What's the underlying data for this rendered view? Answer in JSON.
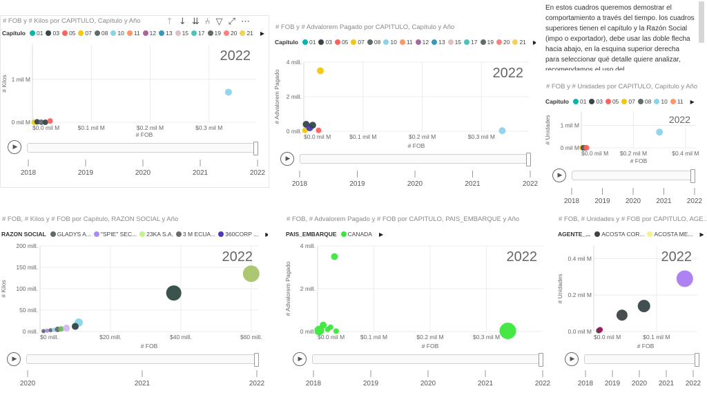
{
  "text_box": {
    "body": "En estos cuadros queremos demostrar el comportamiento a través del tiempo. los cuadros superiores tienen el capítulo y la Razón Social (impo o exportador), debe usar las doble flecha hacia abajo, en la esquina superior derecha para seleccionar qué detalle quiere analizar, recomendamos el uso del"
  },
  "toolbar": {
    "icons": [
      "drill-up-icon",
      "drill-down-icon",
      "expand-all-down-icon",
      "expand-next-level-icon",
      "filter-icon",
      "focus-mode-icon",
      "more-options-icon"
    ]
  },
  "visuals": [
    {
      "title": "# FOB y # Kilos por CAPITULO, Capítulo y Año",
      "legend_title": "Capítulo",
      "legend": [
        {
          "label": "01",
          "color": "#01B8AA"
        },
        {
          "label": "03",
          "color": "#374649"
        },
        {
          "label": "05",
          "color": "#FD625E"
        },
        {
          "label": "07",
          "color": "#F2C80F"
        },
        {
          "label": "08",
          "color": "#5F6B6D"
        },
        {
          "label": "10",
          "color": "#8AD4EB"
        },
        {
          "label": "11",
          "color": "#FE9666"
        },
        {
          "label": "12",
          "color": "#A66999"
        },
        {
          "label": "13",
          "color": "#3599B8"
        },
        {
          "label": "15",
          "color": "#DFBFBF"
        },
        {
          "label": "17",
          "color": "#4AC5BB"
        },
        {
          "label": "19",
          "color": "#5F6B6D"
        },
        {
          "label": "20",
          "color": "#FB8281"
        },
        {
          "label": "21",
          "color": "#F4D25A"
        }
      ],
      "year_watermark": "2022",
      "x_label": "# FOB",
      "y_label": "# Kilos",
      "x_ticks": [
        "$0.0 mil M",
        "$0.1 mil M",
        "$0.2 mil M",
        "$0.3 mil M"
      ],
      "y_ticks": [
        "0 mil M",
        "1 mil M"
      ],
      "play_axis": [
        "2018",
        "2019",
        "2020",
        "2021",
        "2022"
      ]
    },
    {
      "title": "# FOB y # Advalorem Pagado por CAPITULO, Capítulo y Año",
      "legend_title": "Capítulo",
      "legend": [
        {
          "label": "01",
          "color": "#01B8AA"
        },
        {
          "label": "03",
          "color": "#374649"
        },
        {
          "label": "05",
          "color": "#FD625E"
        },
        {
          "label": "07",
          "color": "#F2C80F"
        },
        {
          "label": "08",
          "color": "#5F6B6D"
        },
        {
          "label": "10",
          "color": "#8AD4EB"
        },
        {
          "label": "11",
          "color": "#FE9666"
        },
        {
          "label": "12",
          "color": "#A66999"
        },
        {
          "label": "13",
          "color": "#3599B8"
        },
        {
          "label": "15",
          "color": "#DFBFBF"
        },
        {
          "label": "17",
          "color": "#4AC5BB"
        },
        {
          "label": "19",
          "color": "#5F6B6D"
        },
        {
          "label": "20",
          "color": "#FB8281"
        },
        {
          "label": "21",
          "color": "#F4D25A"
        }
      ],
      "year_watermark": "2022",
      "x_label": "# FOB",
      "y_label": "# Advalorem Pagado",
      "x_ticks": [
        "$0.0 mil M",
        "$0.1 mil M",
        "$0.2 mil M",
        "$0.3 mil M"
      ],
      "y_ticks": [
        "0 mill.",
        "2 mill.",
        "4 mill."
      ],
      "play_axis": [
        "2018",
        "2019",
        "2020",
        "2021",
        "2022"
      ]
    },
    {
      "title": "# FOB y # Unidades por CAPITULO, Capítulo y Año",
      "legend_title": "Capítulo",
      "legend": [
        {
          "label": "01",
          "color": "#01B8AA"
        },
        {
          "label": "03",
          "color": "#374649"
        },
        {
          "label": "05",
          "color": "#FD625E"
        },
        {
          "label": "07",
          "color": "#F2C80F"
        },
        {
          "label": "08",
          "color": "#5F6B6D"
        },
        {
          "label": "10",
          "color": "#8AD4EB"
        },
        {
          "label": "11",
          "color": "#FE9666"
        }
      ],
      "year_watermark": "2022",
      "x_label": "# FOB",
      "y_label": "# Unidades",
      "x_ticks": [
        "$0.0 mil M",
        "$0.2 mil M",
        "$0.4 mil M"
      ],
      "y_ticks": [
        "0 mil M",
        "1 mil M"
      ],
      "play_axis": [
        "2018",
        "2019",
        "2020",
        "2021",
        "2022"
      ]
    },
    {
      "title": "# FOB, # Kilos y # FOB por Capítulo, RAZON SOCIAL y Año",
      "legend_title": "RAZON SOCIAL",
      "legend": [
        {
          "label": "GLADYS A...",
          "color": "#5F6B6D"
        },
        {
          "label": "\"SPIE\" SEC...",
          "color": "#A98CF0"
        },
        {
          "label": "23KA S.A.",
          "color": "#C5F08A"
        },
        {
          "label": "3 M ECUA...",
          "color": "#6B6B6B"
        },
        {
          "label": "360CORP ...",
          "color": "#4B3BB5"
        }
      ],
      "year_watermark": "2022",
      "x_label": "# FOB",
      "y_label": "# Kilos",
      "x_ticks": [
        "$0 mill.",
        "$20 mill.",
        "$40 mill.",
        "$60 mill."
      ],
      "y_ticks": [
        "0 mill.",
        "50 mill.",
        "100 mill.",
        "150 mill.",
        "200 mill."
      ],
      "play_axis": [
        "2020",
        "2021",
        "2022"
      ]
    },
    {
      "title": "# FOB, # Advalorem Pagado y # FOB por CAPITULO, PAIS_EMBARQUE y Año",
      "legend_title": "PAIS_EMBARQUE",
      "legend": [
        {
          "label": "CANADA",
          "color": "#3CE63C"
        }
      ],
      "year_watermark": "2022",
      "x_label": "# FOB",
      "y_label": "# Advalorem Pagado",
      "x_ticks": [
        "$0.0 mil M",
        "$0.1 mil M",
        "$0.2 mil M",
        "$0.3 mil M"
      ],
      "y_ticks": [
        "0 mill.",
        "2 mill.",
        "4 mill."
      ],
      "play_axis": [
        "2018",
        "2019",
        "2020",
        "2021",
        "2022"
      ]
    },
    {
      "title": "# FOB, # Unidades y # FOB por CAPITULO, AGE...",
      "legend_title": "AGENTE_...",
      "legend": [
        {
          "label": "ACOSTA COR...",
          "color": "#3E4347"
        },
        {
          "label": "ACOSTA ME...",
          "color": "#F4F08A"
        }
      ],
      "year_watermark": "2022",
      "x_label": "# FOB",
      "y_label": "# Unidades",
      "x_ticks": [
        "$0.0 mil M",
        "$0.1 mil M"
      ],
      "y_ticks": [
        "0.0 mil M",
        "0.2 mil M",
        "0.4 mil M"
      ],
      "play_axis": [
        "2018",
        "2019",
        "2020",
        "2021",
        "2022"
      ]
    }
  ],
  "chart_data": [
    {
      "type": "scatter",
      "title": "# FOB y # Kilos por CAPITULO, Capítulo y Año",
      "xlabel": "# FOB",
      "ylabel": "# Kilos",
      "x_unit": "mil M",
      "y_unit": "mil M",
      "xlim": [
        0,
        0.38
      ],
      "ylim": [
        0,
        1.8
      ],
      "x_ticks": [
        0,
        0.1,
        0.2,
        0.3
      ],
      "y_ticks": [
        0,
        1
      ],
      "points": [
        {
          "x": 0.003,
          "y": 0.0,
          "color": "#F2C80F",
          "r": 4
        },
        {
          "x": 0.008,
          "y": 0.01,
          "color": "#374649",
          "r": 4
        },
        {
          "x": 0.015,
          "y": 0.0,
          "color": "#5F6B6D",
          "r": 4
        },
        {
          "x": 0.022,
          "y": 0.0,
          "color": "#374649",
          "r": 4
        },
        {
          "x": 0.03,
          "y": 0.03,
          "color": "#FD625E",
          "r": 4
        },
        {
          "x": 0.333,
          "y": 0.7,
          "color": "#8AD4EB",
          "r": 5
        }
      ]
    },
    {
      "type": "scatter",
      "title": "# FOB y # Advalorem Pagado por CAPITULO, Capítulo y Año",
      "xlabel": "# FOB",
      "ylabel": "# Advalorem Pagado",
      "x_unit": "mil M",
      "y_unit": "mill.",
      "xlim": [
        0,
        0.38
      ],
      "ylim": [
        0,
        4
      ],
      "x_ticks": [
        0,
        0.1,
        0.2,
        0.3
      ],
      "y_ticks": [
        0,
        2,
        4
      ],
      "points": [
        {
          "x": 0.002,
          "y": 0.05,
          "color": "#F2C80F",
          "r": 4
        },
        {
          "x": 0.004,
          "y": 0.4,
          "color": "#374649",
          "r": 5
        },
        {
          "x": 0.01,
          "y": 0.2,
          "color": "#4B3BB5",
          "r": 5
        },
        {
          "x": 0.015,
          "y": 0.35,
          "color": "#374649",
          "r": 5
        },
        {
          "x": 0.025,
          "y": 0.05,
          "color": "#FD625E",
          "r": 4
        },
        {
          "x": 0.028,
          "y": 3.5,
          "color": "#F2C80F",
          "r": 5
        },
        {
          "x": 0.335,
          "y": 0.03,
          "color": "#8AD4EB",
          "r": 5
        }
      ]
    },
    {
      "type": "scatter",
      "title": "# FOB y # Unidades por CAPITULO, Capítulo y Año",
      "xlabel": "# FOB",
      "ylabel": "# Unidades",
      "x_unit": "mil M",
      "y_unit": "mil M",
      "xlim": [
        0,
        0.44
      ],
      "ylim": [
        0,
        1.6
      ],
      "x_ticks": [
        0,
        0.2,
        0.4
      ],
      "y_ticks": [
        0,
        1
      ],
      "points": [
        {
          "x": 0.003,
          "y": 0.0,
          "color": "#F2C80F",
          "r": 4
        },
        {
          "x": 0.008,
          "y": 0.0,
          "color": "#374649",
          "r": 4
        },
        {
          "x": 0.014,
          "y": 0.0,
          "color": "#5F6B6D",
          "r": 4
        },
        {
          "x": 0.02,
          "y": 0.0,
          "color": "#FD625E",
          "r": 4
        },
        {
          "x": 0.3,
          "y": 0.7,
          "color": "#8AD4EB",
          "r": 5
        }
      ]
    },
    {
      "type": "scatter",
      "title": "# FOB, # Kilos y # FOB por Capítulo, RAZON SOCIAL y Año",
      "xlabel": "# FOB",
      "ylabel": "# Kilos",
      "x_unit": "mill.",
      "y_unit": "mill.",
      "xlim": [
        0,
        62
      ],
      "ylim": [
        0,
        200
      ],
      "x_ticks": [
        0,
        20,
        40,
        60
      ],
      "y_ticks": [
        0,
        50,
        100,
        150,
        200
      ],
      "points": [
        {
          "x": 1,
          "y": 1,
          "color": "#5F6B6D",
          "r": 3
        },
        {
          "x": 2,
          "y": 2,
          "color": "#A98CF0",
          "r": 3
        },
        {
          "x": 3,
          "y": 3,
          "color": "#5F6B6D",
          "r": 3
        },
        {
          "x": 4,
          "y": 4,
          "color": "#8AD4EB",
          "r": 3
        },
        {
          "x": 5,
          "y": 5,
          "color": "#5F6B6D",
          "r": 4
        },
        {
          "x": 6,
          "y": 6,
          "color": "#6BBF59",
          "r": 4
        },
        {
          "x": 7.5,
          "y": 8,
          "color": "#D5B8F0",
          "r": 5
        },
        {
          "x": 10,
          "y": 12,
          "color": "#8AD4EB",
          "r": 5
        },
        {
          "x": 11,
          "y": 21,
          "color": "#8AD4EB",
          "r": 6
        },
        {
          "x": 10,
          "y": 12,
          "color": "#374649",
          "r": 5
        },
        {
          "x": 38,
          "y": 90,
          "color": "#2F4A42",
          "r": 11
        },
        {
          "x": 60,
          "y": 135,
          "color": "#A7C46A",
          "r": 12
        }
      ]
    },
    {
      "type": "scatter",
      "title": "# FOB, # Advalorem Pagado y # FOB por CAPITULO, PAIS_EMBARQUE y Año",
      "xlabel": "# FOB",
      "ylabel": "# Advalorem Pagado",
      "x_unit": "mil M",
      "y_unit": "mill.",
      "xlim": [
        0,
        0.4
      ],
      "ylim": [
        0,
        4
      ],
      "x_ticks": [
        0,
        0.1,
        0.2,
        0.3
      ],
      "y_ticks": [
        0,
        2,
        4
      ],
      "points": [
        {
          "x": 0.003,
          "y": 0.05,
          "color": "#3CE63C",
          "r": 7
        },
        {
          "x": 0.01,
          "y": 0.3,
          "color": "#3CE63C",
          "r": 5
        },
        {
          "x": 0.018,
          "y": 0.1,
          "color": "#3CE63C",
          "r": 4
        },
        {
          "x": 0.023,
          "y": 0.2,
          "color": "#3CE63C",
          "r": 4
        },
        {
          "x": 0.033,
          "y": 0.02,
          "color": "#3CE63C",
          "r": 4
        },
        {
          "x": 0.03,
          "y": 3.5,
          "color": "#3CE63C",
          "r": 5
        },
        {
          "x": 0.338,
          "y": 0.03,
          "color": "#3CE63C",
          "r": 12
        }
      ]
    },
    {
      "type": "scatter",
      "title": "# FOB, # Unidades y # FOB por CAPITULO, AGE...",
      "xlabel": "# FOB",
      "ylabel": "# Unidades",
      "x_unit": "mil M",
      "y_unit": "mil M",
      "xlim": [
        0,
        0.165
      ],
      "ylim": [
        0,
        0.47
      ],
      "x_ticks": [
        0,
        0.1
      ],
      "y_ticks": [
        0,
        0.2,
        0.4
      ],
      "points": [
        {
          "x": 0.008,
          "y": 0.005,
          "color": "#3E4347",
          "r": 4
        },
        {
          "x": 0.01,
          "y": 0.01,
          "color": "#A2165A",
          "r": 4
        },
        {
          "x": 0.045,
          "y": 0.09,
          "color": "#3E4347",
          "r": 8
        },
        {
          "x": 0.08,
          "y": 0.14,
          "color": "#374649",
          "r": 9
        },
        {
          "x": 0.145,
          "y": 0.29,
          "color": "#A97CF0",
          "r": 12
        }
      ]
    }
  ]
}
